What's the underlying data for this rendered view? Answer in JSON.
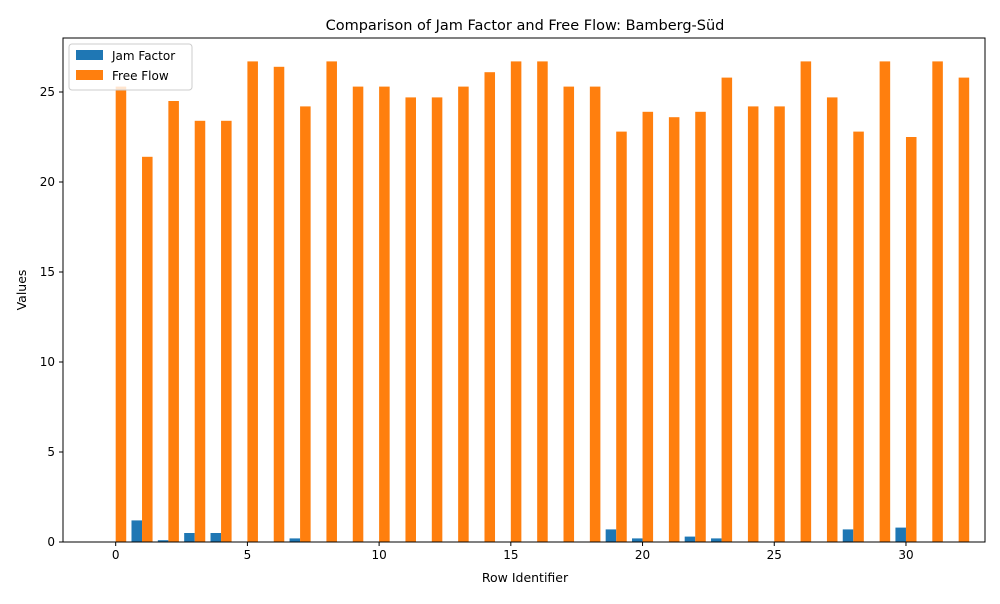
{
  "chart_data": {
    "type": "bar",
    "title": "Comparison of Jam Factor and Free Flow: Bamberg-Süd",
    "xlabel": "Row Identifier",
    "ylabel": "Values",
    "xlim": [
      -2.0,
      33.0
    ],
    "ylim": [
      0,
      28
    ],
    "xticks": [
      0,
      5,
      10,
      15,
      20,
      25,
      30
    ],
    "yticks": [
      0,
      5,
      10,
      15,
      20,
      25
    ],
    "x": [
      0,
      1,
      2,
      3,
      4,
      5,
      6,
      7,
      8,
      9,
      10,
      11,
      12,
      13,
      14,
      15,
      16,
      17,
      18,
      19,
      20,
      21,
      22,
      23,
      24,
      25,
      26,
      27,
      28,
      29,
      30,
      31,
      32
    ],
    "series": [
      {
        "name": "Jam Factor",
        "color": "#1f77b4",
        "values": [
          0.0,
          1.2,
          0.1,
          0.5,
          0.5,
          0.0,
          0.0,
          0.2,
          0.0,
          0.0,
          0.0,
          0.0,
          0.0,
          0.0,
          0.0,
          0.0,
          0.0,
          0.0,
          0.0,
          0.7,
          0.2,
          0.0,
          0.3,
          0.2,
          0.0,
          0.0,
          0.0,
          0.0,
          0.7,
          0.0,
          0.8,
          0.0,
          0.0
        ]
      },
      {
        "name": "Free Flow",
        "color": "#ff7f0e",
        "values": [
          25.3,
          21.4,
          24.5,
          23.4,
          23.4,
          26.7,
          26.4,
          24.2,
          26.7,
          25.3,
          25.3,
          24.7,
          24.7,
          25.3,
          26.1,
          26.7,
          26.7,
          25.3,
          25.3,
          22.8,
          23.9,
          23.6,
          23.9,
          25.8,
          24.2,
          24.2,
          26.7,
          24.7,
          22.8,
          26.7,
          22.5,
          26.7,
          25.8
        ]
      }
    ],
    "legend": {
      "position": "top-left"
    },
    "grid": false
  }
}
